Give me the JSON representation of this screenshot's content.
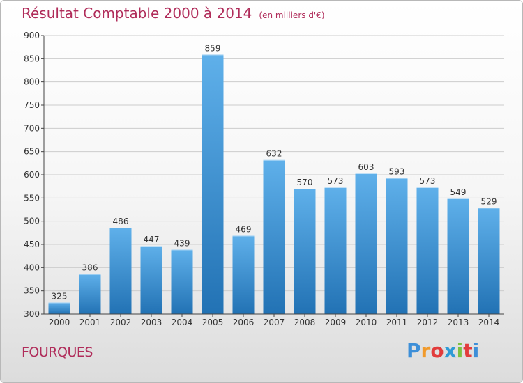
{
  "header": {
    "title": "Résultat Comptable 2000 à 2014",
    "subtitle": "(en milliers d'€)"
  },
  "footer": {
    "commune": "FOURQUES",
    "logo_text": "Proxiti",
    "logo_letters": [
      "P",
      "r",
      "o",
      "x",
      "i",
      "t",
      "i"
    ],
    "logo_colors": [
      "#3d8fd8",
      "#f19a2b",
      "#e23c3c",
      "#2f9bd6",
      "#7cc242",
      "#e23c3c",
      "#3d8fd8"
    ]
  },
  "colors": {
    "title": "#b02c5a",
    "bar_top": "#5fb0ea",
    "bar_bottom": "#2272b4",
    "grid": "#cccccc",
    "axis": "#444444"
  },
  "chart_data": {
    "type": "bar",
    "title": "Résultat Comptable 2000 à 2014",
    "subtitle": "(en milliers d'€)",
    "categories": [
      "2000",
      "2001",
      "2002",
      "2003",
      "2004",
      "2005",
      "2006",
      "2007",
      "2008",
      "2009",
      "2010",
      "2011",
      "2012",
      "2013",
      "2014"
    ],
    "values": [
      325,
      386,
      486,
      447,
      439,
      859,
      469,
      632,
      570,
      573,
      603,
      593,
      573,
      549,
      529
    ],
    "ylim": [
      300,
      900
    ],
    "yticks": [
      300,
      350,
      400,
      450,
      500,
      550,
      600,
      650,
      700,
      750,
      800,
      850,
      900
    ],
    "grid": true,
    "data_labels": true
  }
}
